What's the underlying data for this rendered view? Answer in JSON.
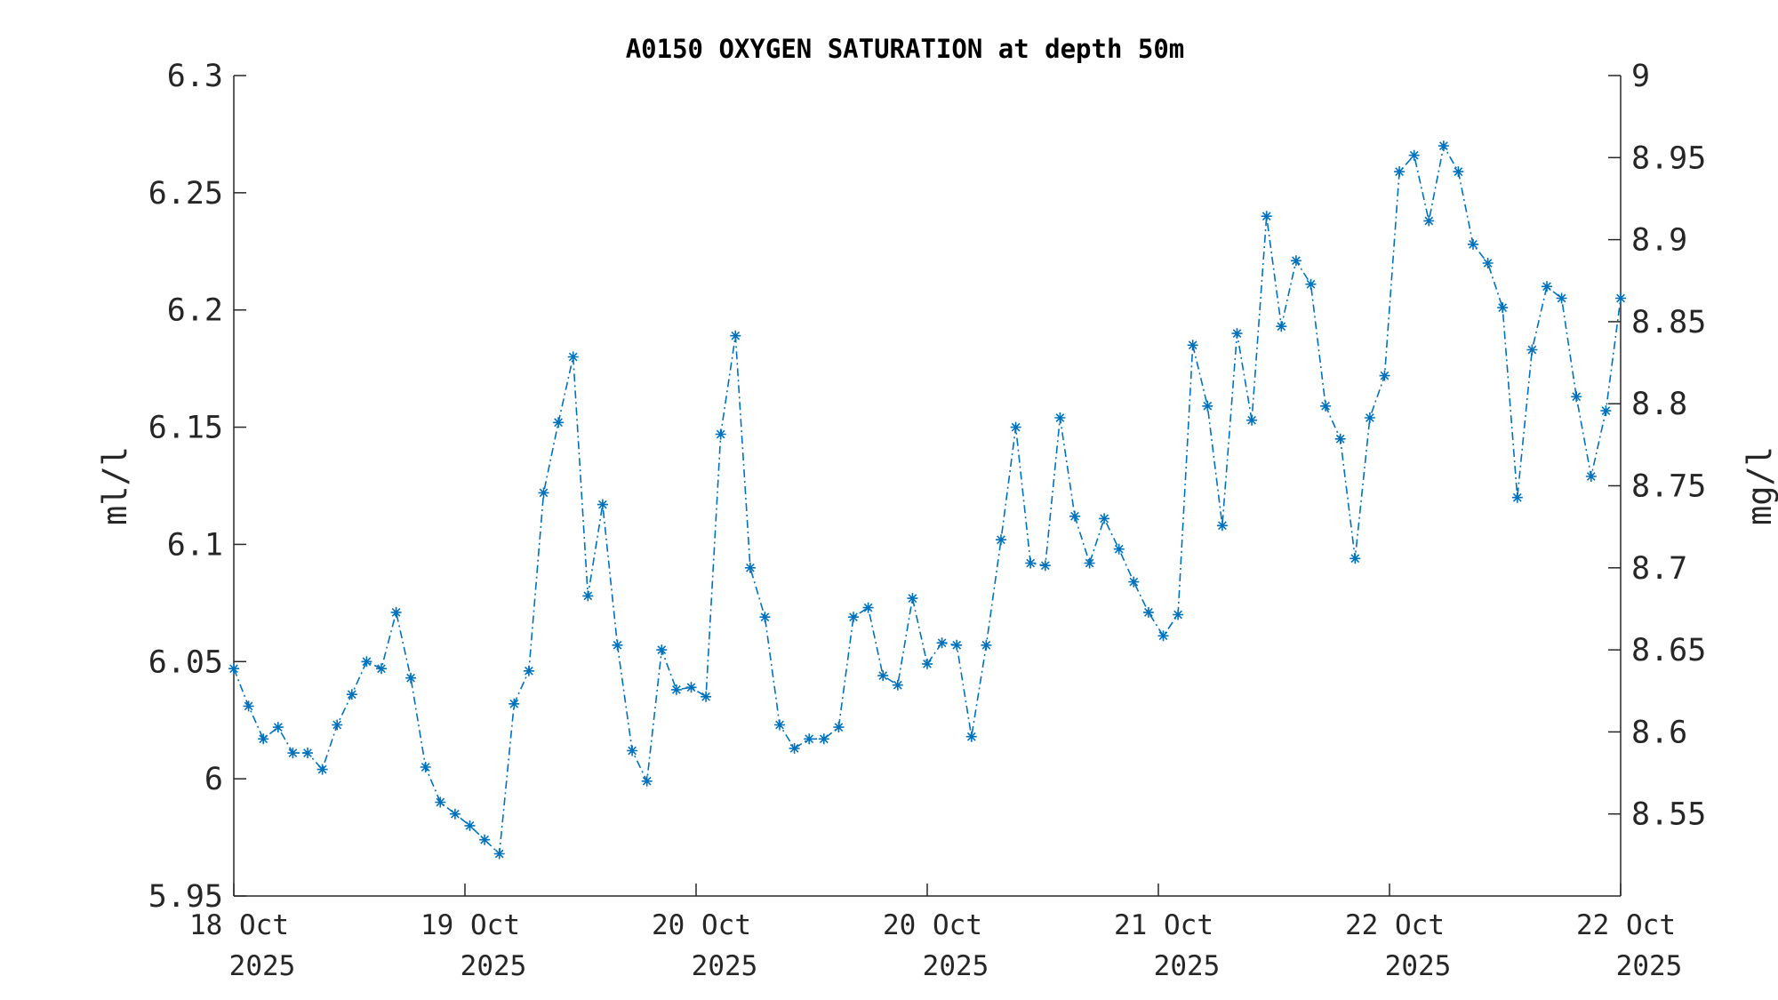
{
  "chart_data": {
    "type": "line",
    "title": "A0150 OXYGEN SATURATION at depth 50m",
    "ylabel": "ml/l",
    "ylabel_right": "mg/l",
    "ylim": [
      5.95,
      6.3
    ],
    "ylim_right": [
      8.5,
      9.0
    ],
    "yticks": [
      "6.3",
      "6.25",
      "6.2",
      "6.15",
      "6.1",
      "6.05",
      "6",
      "5.95"
    ],
    "yticks_right": [
      "9",
      "8.95",
      "8.9",
      "8.85",
      "8.8",
      "8.75",
      "8.7",
      "8.65",
      "8.6",
      "8.55"
    ],
    "xticks": [
      {
        "day": "18 Oct",
        "year": "2025"
      },
      {
        "day": "19 Oct",
        "year": "2025"
      },
      {
        "day": "20 Oct",
        "year": "2025"
      },
      {
        "day": "20 Oct",
        "year": "2025"
      },
      {
        "day": "21 Oct",
        "year": "2025"
      },
      {
        "day": "22 Oct",
        "year": "2025"
      },
      {
        "day": "22 Oct",
        "year": "2025"
      }
    ],
    "color": "#0072BD",
    "line_style": "dash-dot",
    "marker": "asterisk",
    "grid": false,
    "series": [
      {
        "values": [
          6.047,
          6.031,
          6.017,
          6.022,
          6.011,
          6.011,
          6.004,
          6.023,
          6.036,
          6.05,
          6.047,
          6.071,
          6.043,
          6.005,
          5.99,
          5.985,
          5.98,
          5.974,
          5.968,
          6.032,
          6.046,
          6.122,
          6.152,
          6.18,
          6.078,
          6.117,
          6.057,
          6.012,
          5.999,
          6.055,
          6.038,
          6.039,
          6.035,
          6.147,
          6.189,
          6.09,
          6.069,
          6.023,
          6.013,
          6.017,
          6.017,
          6.022,
          6.069,
          6.073,
          6.044,
          6.04,
          6.077,
          6.049,
          6.058,
          6.057,
          6.018,
          6.057,
          6.102,
          6.15,
          6.092,
          6.091,
          6.154,
          6.112,
          6.092,
          6.111,
          6.098,
          6.084,
          6.071,
          6.061,
          6.07,
          6.185,
          6.159,
          6.108,
          6.19,
          6.153,
          6.24,
          6.193,
          6.221,
          6.211,
          6.159,
          6.145,
          6.094,
          6.154,
          6.172,
          6.259,
          6.266,
          6.238,
          6.27,
          6.259,
          6.228,
          6.22,
          6.201,
          6.12,
          6.183,
          6.21,
          6.205,
          6.163,
          6.129,
          6.157,
          6.205
        ]
      }
    ]
  }
}
